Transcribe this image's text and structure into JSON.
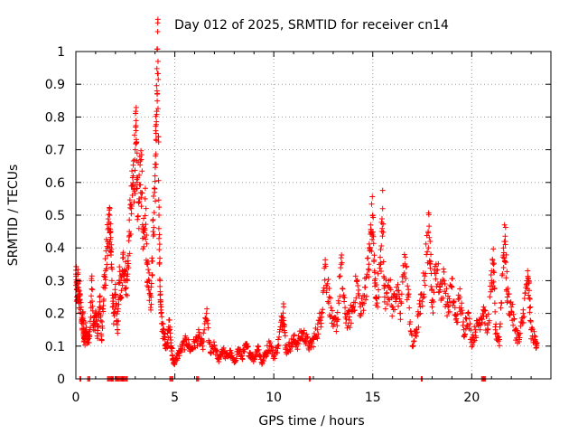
{
  "chart_data": {
    "type": "scatter",
    "title": "Day 012 of 2025, SRMTID for receiver cn14",
    "xlabel": "GPS time / hours",
    "ylabel": "SRMTID / TECUs",
    "xlim": [
      0,
      24
    ],
    "ylim": [
      0,
      1
    ],
    "xticks": [
      0,
      5,
      10,
      15,
      20
    ],
    "xtick_labels": [
      "0",
      "5",
      "10",
      "15",
      "20"
    ],
    "yticks": [
      0,
      0.1,
      0.2,
      0.3,
      0.4,
      0.5,
      0.6,
      0.7,
      0.8,
      0.9,
      1
    ],
    "ytick_labels": [
      "0",
      "0.1",
      "0.2",
      "0.3",
      "0.4",
      "0.5",
      "0.6",
      "0.7",
      "0.8",
      "0.9",
      "1"
    ],
    "grid": true,
    "marker": "plus",
    "color": "#ff0000",
    "trace_points": [
      [
        0.0,
        0.32
      ],
      [
        0.05,
        0.25
      ],
      [
        0.1,
        0.3
      ],
      [
        0.15,
        0.24
      ],
      [
        0.2,
        0.26
      ],
      [
        0.3,
        0.17
      ],
      [
        0.35,
        0.2
      ],
      [
        0.4,
        0.14
      ],
      [
        0.45,
        0.12
      ],
      [
        0.5,
        0.15
      ],
      [
        0.6,
        0.12
      ],
      [
        0.7,
        0.13
      ],
      [
        0.8,
        0.3
      ],
      [
        0.9,
        0.15
      ],
      [
        1.0,
        0.2
      ],
      [
        1.1,
        0.14
      ],
      [
        1.2,
        0.25
      ],
      [
        1.3,
        0.12
      ],
      [
        1.4,
        0.28
      ],
      [
        1.5,
        0.33
      ],
      [
        1.6,
        0.42
      ],
      [
        1.7,
        0.5
      ],
      [
        1.75,
        0.45
      ],
      [
        1.8,
        0.35
      ],
      [
        1.9,
        0.2
      ],
      [
        2.0,
        0.25
      ],
      [
        2.1,
        0.15
      ],
      [
        2.2,
        0.3
      ],
      [
        2.3,
        0.27
      ],
      [
        2.4,
        0.37
      ],
      [
        2.5,
        0.32
      ],
      [
        2.6,
        0.3
      ],
      [
        2.7,
        0.45
      ],
      [
        2.8,
        0.52
      ],
      [
        2.9,
        0.62
      ],
      [
        3.0,
        0.7
      ],
      [
        3.05,
        0.72
      ],
      [
        3.1,
        0.6
      ],
      [
        3.2,
        0.55
      ],
      [
        3.3,
        0.67
      ],
      [
        3.4,
        0.45
      ],
      [
        3.5,
        0.55
      ],
      [
        3.6,
        0.35
      ],
      [
        3.7,
        0.3
      ],
      [
        3.8,
        0.25
      ],
      [
        3.9,
        0.45
      ],
      [
        4.0,
        0.62
      ],
      [
        4.05,
        0.75
      ],
      [
        4.1,
        0.88
      ],
      [
        4.15,
        0.97
      ],
      [
        4.2,
        0.5
      ],
      [
        4.25,
        0.3
      ],
      [
        4.3,
        0.2
      ],
      [
        4.4,
        0.15
      ],
      [
        4.5,
        0.12
      ],
      [
        4.6,
        0.1
      ],
      [
        4.7,
        0.18
      ],
      [
        4.8,
        0.11
      ],
      [
        4.9,
        0.06
      ],
      [
        5.0,
        0.05
      ],
      [
        5.2,
        0.08
      ],
      [
        5.4,
        0.1
      ],
      [
        5.6,
        0.12
      ],
      [
        5.8,
        0.09
      ],
      [
        6.0,
        0.11
      ],
      [
        6.2,
        0.13
      ],
      [
        6.4,
        0.1
      ],
      [
        6.6,
        0.2
      ],
      [
        6.8,
        0.08
      ],
      [
        7.0,
        0.1
      ],
      [
        7.2,
        0.06
      ],
      [
        7.4,
        0.09
      ],
      [
        7.6,
        0.07
      ],
      [
        7.8,
        0.08
      ],
      [
        8.0,
        0.05
      ],
      [
        8.2,
        0.09
      ],
      [
        8.4,
        0.07
      ],
      [
        8.6,
        0.1
      ],
      [
        8.8,
        0.08
      ],
      [
        9.0,
        0.06
      ],
      [
        9.2,
        0.1
      ],
      [
        9.4,
        0.05
      ],
      [
        9.6,
        0.08
      ],
      [
        9.8,
        0.11
      ],
      [
        10.0,
        0.07
      ],
      [
        10.2,
        0.1
      ],
      [
        10.4,
        0.18
      ],
      [
        10.5,
        0.22
      ],
      [
        10.6,
        0.09
      ],
      [
        10.8,
        0.1
      ],
      [
        11.0,
        0.12
      ],
      [
        11.2,
        0.11
      ],
      [
        11.4,
        0.14
      ],
      [
        11.6,
        0.13
      ],
      [
        11.8,
        0.1
      ],
      [
        12.0,
        0.12
      ],
      [
        12.2,
        0.15
      ],
      [
        12.4,
        0.2
      ],
      [
        12.6,
        0.35
      ],
      [
        12.8,
        0.25
      ],
      [
        13.0,
        0.16
      ],
      [
        13.2,
        0.18
      ],
      [
        13.4,
        0.35
      ],
      [
        13.6,
        0.2
      ],
      [
        13.8,
        0.18
      ],
      [
        14.0,
        0.22
      ],
      [
        14.2,
        0.3
      ],
      [
        14.4,
        0.2
      ],
      [
        14.6,
        0.28
      ],
      [
        14.8,
        0.35
      ],
      [
        14.9,
        0.45
      ],
      [
        15.0,
        0.5
      ],
      [
        15.1,
        0.3
      ],
      [
        15.2,
        0.25
      ],
      [
        15.4,
        0.35
      ],
      [
        15.5,
        0.52
      ],
      [
        15.6,
        0.25
      ],
      [
        15.8,
        0.3
      ],
      [
        16.0,
        0.22
      ],
      [
        16.2,
        0.28
      ],
      [
        16.4,
        0.2
      ],
      [
        16.6,
        0.38
      ],
      [
        16.8,
        0.25
      ],
      [
        17.0,
        0.1
      ],
      [
        17.2,
        0.15
      ],
      [
        17.4,
        0.22
      ],
      [
        17.6,
        0.3
      ],
      [
        17.8,
        0.45
      ],
      [
        17.9,
        0.42
      ],
      [
        18.0,
        0.22
      ],
      [
        18.2,
        0.35
      ],
      [
        18.4,
        0.28
      ],
      [
        18.6,
        0.3
      ],
      [
        18.8,
        0.22
      ],
      [
        19.0,
        0.28
      ],
      [
        19.2,
        0.18
      ],
      [
        19.4,
        0.25
      ],
      [
        19.6,
        0.15
      ],
      [
        19.8,
        0.2
      ],
      [
        20.0,
        0.12
      ],
      [
        20.2,
        0.15
      ],
      [
        20.4,
        0.18
      ],
      [
        20.6,
        0.22
      ],
      [
        20.8,
        0.15
      ],
      [
        21.0,
        0.3
      ],
      [
        21.1,
        0.35
      ],
      [
        21.2,
        0.15
      ],
      [
        21.4,
        0.12
      ],
      [
        21.6,
        0.4
      ],
      [
        21.7,
        0.42
      ],
      [
        21.8,
        0.25
      ],
      [
        22.0,
        0.22
      ],
      [
        22.2,
        0.15
      ],
      [
        22.4,
        0.12
      ],
      [
        22.6,
        0.2
      ],
      [
        22.8,
        0.3
      ],
      [
        22.9,
        0.27
      ],
      [
        23.0,
        0.15
      ],
      [
        23.2,
        0.12
      ],
      [
        23.3,
        0.11
      ]
    ],
    "baseline_segments": [
      [
        0.2,
        0.25
      ],
      [
        0.6,
        0.7
      ],
      [
        1.6,
        1.9
      ],
      [
        2.0,
        2.4
      ],
      [
        2.4,
        2.6
      ],
      [
        4.75,
        4.9
      ],
      [
        6.1,
        6.2
      ],
      [
        11.8,
        11.85
      ],
      [
        17.45,
        17.5
      ],
      [
        20.5,
        20.7
      ]
    ]
  }
}
